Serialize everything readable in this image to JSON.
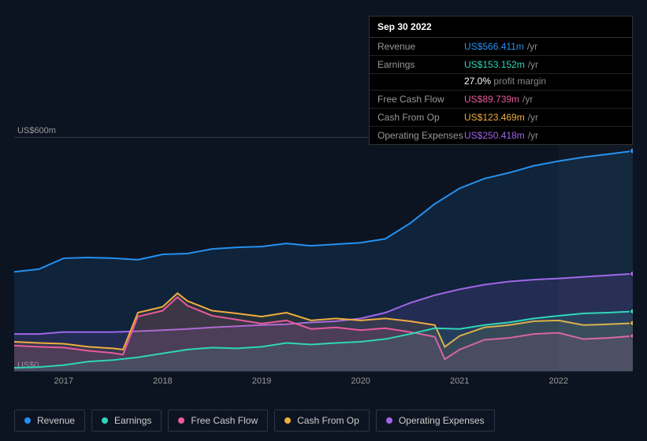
{
  "tooltip": {
    "date": "Sep 30 2022",
    "rows": [
      {
        "label": "Revenue",
        "value": "US$566.411m",
        "suffix": "/yr",
        "color": "#2490ef"
      },
      {
        "label": "Earnings",
        "value": "US$153.152m",
        "suffix": "/yr",
        "color": "#2ed6b8"
      },
      {
        "label": "Free Cash Flow",
        "value": "US$89.739m",
        "suffix": "/yr",
        "color": "#e85a9b"
      },
      {
        "label": "Cash From Op",
        "value": "US$123.469m",
        "suffix": "/yr",
        "color": "#eead3f"
      },
      {
        "label": "Operating Expenses",
        "value": "US$250.418m",
        "suffix": "/yr",
        "color": "#a066e8"
      }
    ],
    "profit_margin_pct": "27.0%",
    "profit_margin_label": "profit margin"
  },
  "chart": {
    "type": "area",
    "background_color": "#0d1421",
    "grid_color": "#2a3548",
    "y_top_label": "US$600m",
    "y_bottom_label": "US$0",
    "ylim": [
      0,
      600
    ],
    "x_years": [
      "2017",
      "2018",
      "2019",
      "2020",
      "2021",
      "2022"
    ],
    "x_domain": [
      2016.5,
      2022.75
    ],
    "highlight_band": [
      2022.0,
      2022.75
    ],
    "label_fontsize": 11,
    "label_color": "#999999",
    "series": [
      {
        "name": "Revenue",
        "color": "#2490ef",
        "fill_opacity": 0.12,
        "line_width": 2,
        "points": [
          [
            2016.5,
            255
          ],
          [
            2016.75,
            262
          ],
          [
            2017.0,
            290
          ],
          [
            2017.25,
            292
          ],
          [
            2017.5,
            290
          ],
          [
            2017.75,
            286
          ],
          [
            2018.0,
            300
          ],
          [
            2018.25,
            302
          ],
          [
            2018.5,
            314
          ],
          [
            2018.75,
            318
          ],
          [
            2019.0,
            320
          ],
          [
            2019.25,
            328
          ],
          [
            2019.5,
            322
          ],
          [
            2019.75,
            326
          ],
          [
            2020.0,
            330
          ],
          [
            2020.25,
            340
          ],
          [
            2020.5,
            380
          ],
          [
            2020.75,
            430
          ],
          [
            2021.0,
            470
          ],
          [
            2021.25,
            495
          ],
          [
            2021.5,
            510
          ],
          [
            2021.75,
            528
          ],
          [
            2022.0,
            540
          ],
          [
            2022.25,
            550
          ],
          [
            2022.5,
            558
          ],
          [
            2022.75,
            566
          ]
        ]
      },
      {
        "name": "Operating Expenses",
        "color": "#a066e8",
        "fill_opacity": 0.14,
        "line_width": 2,
        "points": [
          [
            2016.5,
            95
          ],
          [
            2016.75,
            95
          ],
          [
            2017.0,
            100
          ],
          [
            2017.25,
            100
          ],
          [
            2017.5,
            100
          ],
          [
            2017.75,
            102
          ],
          [
            2018.0,
            105
          ],
          [
            2018.25,
            108
          ],
          [
            2018.5,
            112
          ],
          [
            2018.75,
            115
          ],
          [
            2019.0,
            118
          ],
          [
            2019.25,
            120
          ],
          [
            2019.5,
            125
          ],
          [
            2019.75,
            128
          ],
          [
            2020.0,
            135
          ],
          [
            2020.25,
            150
          ],
          [
            2020.5,
            175
          ],
          [
            2020.75,
            195
          ],
          [
            2021.0,
            210
          ],
          [
            2021.25,
            222
          ],
          [
            2021.5,
            230
          ],
          [
            2021.75,
            235
          ],
          [
            2022.0,
            238
          ],
          [
            2022.25,
            242
          ],
          [
            2022.5,
            246
          ],
          [
            2022.75,
            250
          ]
        ]
      },
      {
        "name": "Cash From Op",
        "color": "#eead3f",
        "fill_opacity": 0.1,
        "line_width": 2,
        "points": [
          [
            2016.5,
            75
          ],
          [
            2016.75,
            72
          ],
          [
            2017.0,
            70
          ],
          [
            2017.25,
            62
          ],
          [
            2017.5,
            58
          ],
          [
            2017.6,
            55
          ],
          [
            2017.75,
            150
          ],
          [
            2018.0,
            165
          ],
          [
            2018.15,
            200
          ],
          [
            2018.25,
            180
          ],
          [
            2018.5,
            155
          ],
          [
            2018.75,
            148
          ],
          [
            2019.0,
            140
          ],
          [
            2019.25,
            150
          ],
          [
            2019.5,
            130
          ],
          [
            2019.75,
            135
          ],
          [
            2020.0,
            130
          ],
          [
            2020.25,
            135
          ],
          [
            2020.5,
            128
          ],
          [
            2020.75,
            118
          ],
          [
            2020.85,
            62
          ],
          [
            2021.0,
            90
          ],
          [
            2021.25,
            112
          ],
          [
            2021.5,
            118
          ],
          [
            2021.75,
            128
          ],
          [
            2022.0,
            130
          ],
          [
            2022.25,
            118
          ],
          [
            2022.5,
            120
          ],
          [
            2022.75,
            123
          ]
        ]
      },
      {
        "name": "Free Cash Flow",
        "color": "#e85a9b",
        "fill_opacity": 0.12,
        "line_width": 2,
        "points": [
          [
            2016.5,
            65
          ],
          [
            2016.75,
            62
          ],
          [
            2017.0,
            60
          ],
          [
            2017.25,
            52
          ],
          [
            2017.5,
            46
          ],
          [
            2017.6,
            42
          ],
          [
            2017.75,
            140
          ],
          [
            2018.0,
            155
          ],
          [
            2018.15,
            190
          ],
          [
            2018.25,
            168
          ],
          [
            2018.5,
            142
          ],
          [
            2018.75,
            132
          ],
          [
            2019.0,
            122
          ],
          [
            2019.25,
            130
          ],
          [
            2019.5,
            108
          ],
          [
            2019.75,
            112
          ],
          [
            2020.0,
            105
          ],
          [
            2020.25,
            110
          ],
          [
            2020.5,
            100
          ],
          [
            2020.75,
            88
          ],
          [
            2020.85,
            30
          ],
          [
            2021.0,
            55
          ],
          [
            2021.25,
            80
          ],
          [
            2021.5,
            85
          ],
          [
            2021.75,
            95
          ],
          [
            2022.0,
            98
          ],
          [
            2022.25,
            82
          ],
          [
            2022.5,
            85
          ],
          [
            2022.75,
            90
          ]
        ]
      },
      {
        "name": "Earnings",
        "color": "#2ed6b8",
        "fill_opacity": 0.1,
        "line_width": 2,
        "points": [
          [
            2016.5,
            8
          ],
          [
            2016.75,
            10
          ],
          [
            2017.0,
            15
          ],
          [
            2017.25,
            24
          ],
          [
            2017.5,
            28
          ],
          [
            2017.75,
            35
          ],
          [
            2018.0,
            45
          ],
          [
            2018.25,
            55
          ],
          [
            2018.5,
            60
          ],
          [
            2018.75,
            58
          ],
          [
            2019.0,
            62
          ],
          [
            2019.25,
            72
          ],
          [
            2019.5,
            68
          ],
          [
            2019.75,
            72
          ],
          [
            2020.0,
            75
          ],
          [
            2020.25,
            82
          ],
          [
            2020.5,
            95
          ],
          [
            2020.75,
            110
          ],
          [
            2021.0,
            108
          ],
          [
            2021.25,
            118
          ],
          [
            2021.5,
            125
          ],
          [
            2021.75,
            135
          ],
          [
            2022.0,
            142
          ],
          [
            2022.25,
            148
          ],
          [
            2022.5,
            150
          ],
          [
            2022.75,
            153
          ]
        ]
      }
    ]
  },
  "legend": [
    {
      "label": "Revenue",
      "color": "#2490ef"
    },
    {
      "label": "Earnings",
      "color": "#2ed6b8"
    },
    {
      "label": "Free Cash Flow",
      "color": "#e85a9b"
    },
    {
      "label": "Cash From Op",
      "color": "#eead3f"
    },
    {
      "label": "Operating Expenses",
      "color": "#a066e8"
    }
  ]
}
